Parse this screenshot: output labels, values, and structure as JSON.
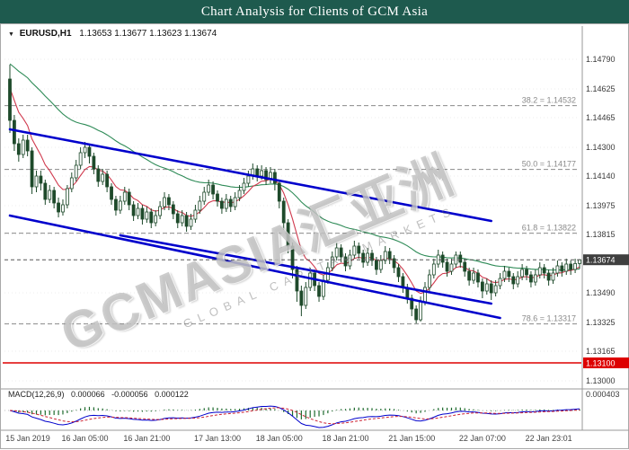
{
  "title_bar": {
    "title": "Chart Analysis for Clients of GCM Asia",
    "bg": "#1E5A4E"
  },
  "symbol_info": {
    "icon": "▼",
    "symbol": "EURUSD,H1",
    "ohlc": "1.13653 1.13677 1.13623 1.13674"
  },
  "watermark": {
    "main": "GCMASIA汇亚洲",
    "sub": "GLOBAL CAPITAL MARKETS"
  },
  "macd_label": {
    "name": "MACD(12,26,9)",
    "main": "0.000066",
    "signal": "-0.000056",
    "hist": "0.000122"
  },
  "chart_data": {
    "type": "candlestick",
    "symbol": "EURUSD",
    "timeframe": "H1",
    "ohlc_base": 1.1,
    "pip": 0.0001,
    "candles": [
      [
        468,
        476,
        438,
        445
      ],
      [
        445,
        448,
        428,
        432
      ],
      [
        432,
        435,
        422,
        426
      ],
      [
        426,
        437,
        424,
        434
      ],
      [
        434,
        437,
        425,
        428
      ],
      [
        428,
        430,
        404,
        408
      ],
      [
        408,
        417,
        405,
        414
      ],
      [
        414,
        417,
        406,
        410
      ],
      [
        410,
        412,
        398,
        401
      ],
      [
        401,
        409,
        399,
        406
      ],
      [
        406,
        408,
        396,
        399
      ],
      [
        399,
        402,
        391,
        394
      ],
      [
        394,
        401,
        392,
        398
      ],
      [
        398,
        409,
        396,
        407
      ],
      [
        407,
        416,
        405,
        413
      ],
      [
        413,
        423,
        411,
        420
      ],
      [
        420,
        430,
        418,
        427
      ],
      [
        427,
        433,
        424,
        430
      ],
      [
        430,
        432,
        421,
        425
      ],
      [
        425,
        427,
        415,
        418
      ],
      [
        418,
        420,
        408,
        411
      ],
      [
        411,
        418,
        409,
        415
      ],
      [
        415,
        417,
        405,
        408
      ],
      [
        408,
        410,
        398,
        401
      ],
      [
        401,
        403,
        392,
        395
      ],
      [
        395,
        403,
        393,
        400
      ],
      [
        400,
        408,
        398,
        405
      ],
      [
        405,
        407,
        395,
        398
      ],
      [
        398,
        400,
        389,
        392
      ],
      [
        392,
        399,
        390,
        396
      ],
      [
        396,
        398,
        387,
        390
      ],
      [
        390,
        397,
        388,
        394
      ],
      [
        394,
        396,
        385,
        388
      ],
      [
        388,
        395,
        386,
        392
      ],
      [
        392,
        400,
        390,
        397
      ],
      [
        397,
        405,
        395,
        402
      ],
      [
        402,
        404,
        395,
        398
      ],
      [
        398,
        400,
        390,
        393
      ],
      [
        393,
        395,
        385,
        388
      ],
      [
        388,
        395,
        386,
        392
      ],
      [
        392,
        394,
        383,
        386
      ],
      [
        386,
        393,
        384,
        390
      ],
      [
        390,
        398,
        388,
        395
      ],
      [
        395,
        403,
        393,
        400
      ],
      [
        400,
        408,
        398,
        405
      ],
      [
        405,
        412,
        403,
        409
      ],
      [
        409,
        411,
        401,
        404
      ],
      [
        404,
        406,
        397,
        400
      ],
      [
        400,
        402,
        393,
        396
      ],
      [
        396,
        404,
        394,
        401
      ],
      [
        401,
        403,
        394,
        397
      ],
      [
        397,
        405,
        395,
        402
      ],
      [
        402,
        409,
        400,
        406
      ],
      [
        406,
        413,
        404,
        410
      ],
      [
        410,
        417,
        408,
        414
      ],
      [
        414,
        421,
        412,
        418
      ],
      [
        418,
        420,
        411,
        414
      ],
      [
        414,
        420,
        412,
        417
      ],
      [
        417,
        419,
        409,
        412
      ],
      [
        412,
        419,
        410,
        416
      ],
      [
        416,
        418,
        406,
        410
      ],
      [
        410,
        412,
        396,
        400
      ],
      [
        400,
        402,
        384,
        388
      ],
      [
        388,
        390,
        371,
        375
      ],
      [
        375,
        377,
        357,
        362
      ],
      [
        362,
        364,
        344,
        350
      ],
      [
        350,
        353,
        336,
        342
      ],
      [
        342,
        355,
        340,
        352
      ],
      [
        352,
        363,
        350,
        360
      ],
      [
        360,
        362,
        350,
        353
      ],
      [
        353,
        355,
        344,
        347
      ],
      [
        347,
        359,
        345,
        356
      ],
      [
        356,
        366,
        354,
        363
      ],
      [
        363,
        372,
        361,
        369
      ],
      [
        369,
        377,
        367,
        374
      ],
      [
        374,
        376,
        366,
        369
      ],
      [
        369,
        371,
        361,
        364
      ],
      [
        364,
        373,
        362,
        370
      ],
      [
        370,
        378,
        368,
        375
      ],
      [
        375,
        377,
        368,
        371
      ],
      [
        371,
        373,
        363,
        366
      ],
      [
        366,
        374,
        364,
        371
      ],
      [
        371,
        373,
        364,
        367
      ],
      [
        367,
        369,
        359,
        362
      ],
      [
        362,
        370,
        360,
        367
      ],
      [
        367,
        375,
        365,
        372
      ],
      [
        372,
        374,
        365,
        368
      ],
      [
        368,
        370,
        360,
        363
      ],
      [
        363,
        365,
        355,
        358
      ],
      [
        358,
        360,
        349,
        352
      ],
      [
        352,
        354,
        343,
        346
      ],
      [
        346,
        348,
        336,
        340
      ],
      [
        340,
        342,
        332,
        334
      ],
      [
        334,
        347,
        333,
        344
      ],
      [
        344,
        355,
        342,
        352
      ],
      [
        352,
        362,
        350,
        359
      ],
      [
        359,
        368,
        357,
        365
      ],
      [
        365,
        373,
        363,
        370
      ],
      [
        370,
        372,
        363,
        366
      ],
      [
        366,
        368,
        358,
        361
      ],
      [
        361,
        368,
        359,
        365
      ],
      [
        365,
        372,
        363,
        370
      ],
      [
        370,
        372,
        363,
        366
      ],
      [
        366,
        368,
        358,
        361
      ],
      [
        361,
        363,
        353,
        356
      ],
      [
        356,
        363,
        354,
        360
      ],
      [
        360,
        362,
        352,
        355
      ],
      [
        355,
        357,
        346,
        350
      ],
      [
        350,
        357,
        348,
        354
      ],
      [
        354,
        356,
        345,
        349
      ],
      [
        349,
        356,
        347,
        353
      ],
      [
        353,
        360,
        351,
        357
      ],
      [
        357,
        364,
        355,
        361
      ],
      [
        361,
        363,
        355,
        358
      ],
      [
        358,
        360,
        351,
        354
      ],
      [
        354,
        361,
        352,
        358
      ],
      [
        358,
        365,
        356,
        362
      ],
      [
        362,
        364,
        356,
        359
      ],
      [
        359,
        361,
        352,
        355
      ],
      [
        355,
        362,
        353,
        359
      ],
      [
        359,
        366,
        357,
        363
      ],
      [
        363,
        365,
        357,
        360
      ],
      [
        360,
        362,
        353,
        356
      ],
      [
        356,
        363,
        354,
        360
      ],
      [
        360,
        367,
        358,
        364
      ],
      [
        364,
        366,
        358,
        361
      ],
      [
        361,
        368,
        359,
        365
      ],
      [
        365,
        367,
        359,
        362
      ],
      [
        362,
        368,
        360,
        365.3
      ],
      [
        365.3,
        367.7,
        362.3,
        367.4
      ]
    ],
    "price_axis_ticks": [
      "1.14790",
      "1.14625",
      "1.14465",
      "1.14300",
      "1.14140",
      "1.13975",
      "1.13815",
      "1.13490",
      "1.13325",
      "1.13165",
      "1.13000"
    ],
    "current_price": {
      "value": 1.13674,
      "label": "1.13674"
    },
    "red_level": {
      "price": 1.131,
      "label": "1.13100"
    },
    "fib_levels": [
      {
        "price": 1.14532,
        "label": "38.2 = 1.14532"
      },
      {
        "price": 1.14177,
        "label": "50.0 = 1.14177"
      },
      {
        "price": 1.13822,
        "label": "61.8 = 1.13822"
      },
      {
        "price": 1.13317,
        "label": "78.6 = 1.13317"
      }
    ],
    "trendlines": [
      {
        "i1": 0,
        "p1": 1.144,
        "i2": 109,
        "p2": 1.1389
      },
      {
        "i1": 25,
        "p1": 1.1381,
        "i2": 109,
        "p2": 1.1343
      },
      {
        "i1": 0,
        "p1": 1.1392,
        "i2": 111,
        "p2": 1.1335
      }
    ],
    "time_axis": [
      {
        "i": 2,
        "label": "15 Jan 2019"
      },
      {
        "i": 17,
        "label": "16 Jan 05:00"
      },
      {
        "i": 31,
        "label": "16 Jan 21:00"
      },
      {
        "i": 47,
        "label": "17 Jan 13:00"
      },
      {
        "i": 61,
        "label": "18 Jan 05:00"
      },
      {
        "i": 76,
        "label": "18 Jan 21:00"
      },
      {
        "i": 91,
        "label": "21 Jan 15:00"
      },
      {
        "i": 107,
        "label": "22 Jan 07:00"
      },
      {
        "i": 122,
        "label": "22 Jan 23:01"
      }
    ],
    "macd": {
      "params": [
        12,
        26,
        9
      ],
      "axis_label": "0.000403"
    },
    "ma_indicators": [
      {
        "name": "ma-slow-green",
        "alpha": 0.045,
        "init": 1.1478,
        "color": "#2e8b57"
      },
      {
        "name": "ma-fast-red",
        "alpha": 0.22,
        "init": 1.1468,
        "color": "#d03a4e"
      }
    ],
    "colors": {
      "bull": "#ffffff",
      "bear": "#1e4a2b",
      "candle_stroke": "#1e4a2b",
      "trend": "#0000cc",
      "fib": "#8a8a8a",
      "fib_text": "#8a8a8a",
      "red_line": "#dd0000",
      "price_line": "#555555",
      "badge_dark": "#3f3f3f",
      "badge_red": "#dd0000",
      "grid": "#ececec",
      "macd_hist": "#1e6b2e",
      "macd_line": "#0000cc",
      "macd_signal": "#cc2233",
      "axis_text": "#3a3a3a",
      "time_text": "#444444"
    }
  }
}
